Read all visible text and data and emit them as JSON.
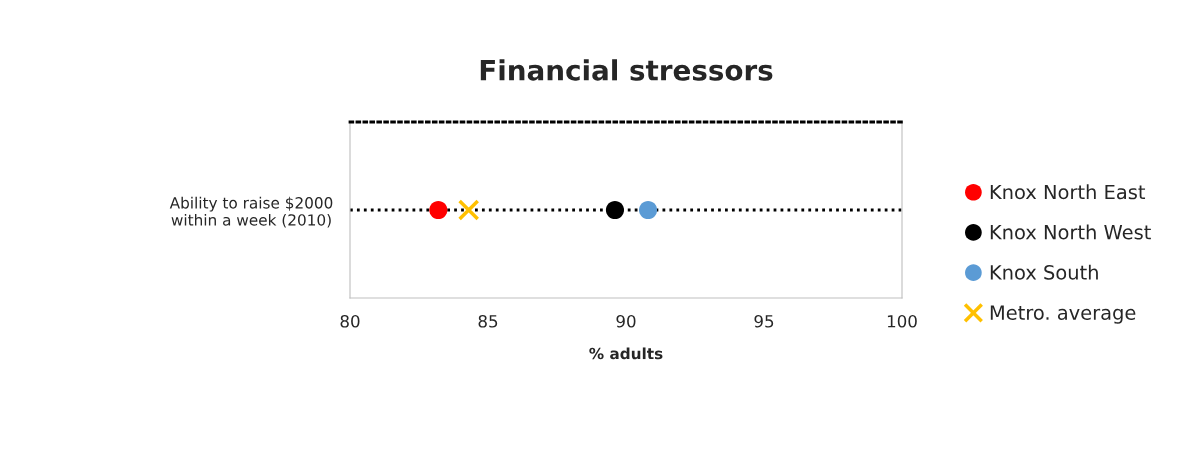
{
  "chart_data": {
    "type": "scatter",
    "title": "Financial stressors",
    "xlabel": "% adults",
    "categories": [
      "Ability to raise $2000\nwithin a week (2010)"
    ],
    "orientation": "horizontal",
    "xlim": [
      80,
      100
    ],
    "xticks": [
      80,
      85,
      90,
      95,
      100
    ],
    "grid": "y",
    "legend": "right",
    "series": [
      {
        "name": "Knox North East",
        "color": "#ff0000",
        "marker": "circle",
        "values": [
          83.2
        ]
      },
      {
        "name": "Knox North West",
        "color": "#000000",
        "marker": "circle",
        "values": [
          89.6
        ]
      },
      {
        "name": "Knox South",
        "color": "#5b9bd5",
        "marker": "circle",
        "values": [
          90.8
        ]
      },
      {
        "name": "Metro. average",
        "color": "#ffc000",
        "marker": "cross",
        "values": [
          84.3
        ]
      }
    ]
  }
}
